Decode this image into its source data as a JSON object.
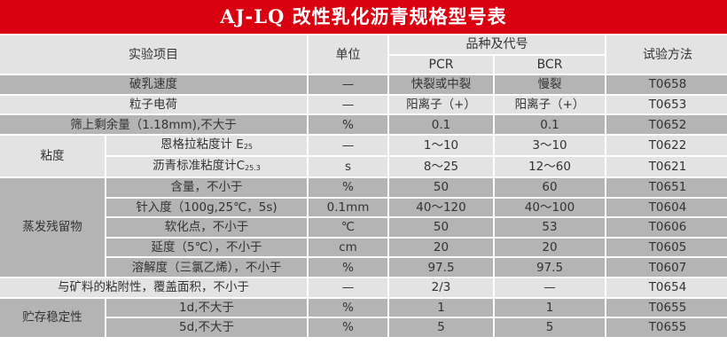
{
  "title": "AJ-LQ  改性乳化沥青规格型号表",
  "header": {
    "item": "实验项目",
    "unit": "单位",
    "variety": "品种及代号",
    "pcr": "PCR",
    "bcr": "BCR",
    "method": "试验方法"
  },
  "rows": [
    {
      "label": "破乳速度",
      "unit": "—",
      "pcr": "快裂或中裂",
      "bcr": "慢裂",
      "method": "T0658"
    },
    {
      "label": "粒子电荷",
      "unit": "—",
      "pcr": "阳离子（+）",
      "bcr": "阳离子（+）",
      "method": "T0653"
    },
    {
      "label": "筛上剩余量（1.18mm),不大于",
      "unit": "%",
      "pcr": "0.1",
      "bcr": "0.1",
      "method": "T0652"
    },
    {
      "group": "粘度",
      "label": "恩格拉粘度计 E",
      "sub": "25",
      "unit": "—",
      "pcr": "1～10",
      "bcr": "3～10",
      "method": "T0622"
    },
    {
      "label": "沥青标准粘度计C",
      "sub": "25.3",
      "unit": "s",
      "pcr": "8～25",
      "bcr": "12～60",
      "method": "T0621"
    },
    {
      "group": "蒸发残留物",
      "label": "含量，不小于",
      "unit": "%",
      "pcr": "50",
      "bcr": "60",
      "method": "T0651"
    },
    {
      "label": "针入度（100g,25℃，5s)",
      "unit": "0.1mm",
      "pcr": "40～120",
      "bcr": "40～100",
      "method": "T0604"
    },
    {
      "label": "软化点，不小于",
      "unit": "℃",
      "pcr": "50",
      "bcr": "53",
      "method": "T0606"
    },
    {
      "label": "延度（5℃），不小于",
      "unit": "cm",
      "pcr": "20",
      "bcr": "20",
      "method": "T0605"
    },
    {
      "label": "溶解度（三氯乙烯），不小于",
      "unit": "%",
      "pcr": "97.5",
      "bcr": "97.5",
      "method": "T0607"
    },
    {
      "label": "与矿料的粘附性，覆盖面积，不小于",
      "unit": "—",
      "pcr": "2/3",
      "bcr": "—",
      "method": "T0654"
    },
    {
      "group": "贮存稳定性",
      "label": "1d,不大于",
      "unit": "%",
      "pcr": "1",
      "bcr": "1",
      "method": "T0655"
    },
    {
      "label": "5d,不大于",
      "unit": "%",
      "pcr": "5",
      "bcr": "5",
      "method": "T0655"
    }
  ]
}
